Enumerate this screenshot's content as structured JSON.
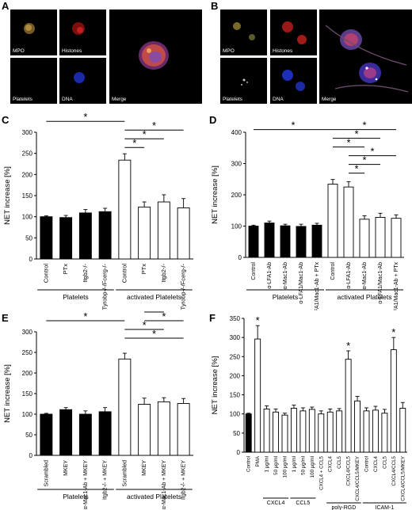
{
  "panels": {
    "A": {
      "label": "A",
      "captions": {
        "mpo": "MPO",
        "histones": "Histones",
        "platelets": "Platelets",
        "dna": "DNA",
        "merge": "Merge"
      }
    },
    "B": {
      "label": "B",
      "captions": {
        "mpo": "MPO",
        "histones": "Histones",
        "platelets": "Platelets",
        "dna": "DNA",
        "merge": "Merge"
      }
    }
  },
  "chart_data": [
    {
      "panel": "C",
      "type": "bar",
      "ylabel": "NET increase [%]",
      "ylim": [
        0,
        300
      ],
      "yticks": [
        0,
        50,
        100,
        150,
        200,
        250,
        300
      ],
      "categories": [
        "Control",
        "PTx",
        "Itgb2-/-",
        "Tyrobp-/-/Fcerg-/-",
        "Control",
        "PTx",
        "Itgb2-/-",
        "Tyrobp-/-/Fcerg-/-"
      ],
      "values": [
        100,
        98,
        109,
        112,
        234,
        123,
        135,
        121
      ],
      "errors": [
        2,
        5,
        8,
        8,
        15,
        12,
        17,
        22
      ],
      "fills": [
        "#000000",
        "#000000",
        "#000000",
        "#000000",
        "#ffffff",
        "#ffffff",
        "#ffffff",
        "#ffffff"
      ],
      "groups": [
        {
          "label": "Platelets",
          "from": 0,
          "to": 3
        },
        {
          "label": "activated Platelets",
          "from": 4,
          "to": 7
        }
      ],
      "brackets": [
        {
          "a": 0,
          "b": 4,
          "label": "*",
          "level": 3
        },
        {
          "a": 4,
          "b": 5,
          "label": "*",
          "level": 0
        },
        {
          "a": 4,
          "b": 6,
          "label": "*",
          "level": 1
        },
        {
          "a": 4,
          "b": 7,
          "label": "*",
          "level": 2
        }
      ]
    },
    {
      "panel": "D",
      "type": "bar",
      "ylabel": "NET increase [%]",
      "ylim": [
        0,
        400
      ],
      "yticks": [
        0,
        100,
        200,
        300,
        400
      ],
      "categories": [
        "Control",
        "α-LFA1-Ab",
        "α-Mac1-Ab",
        "α-LFA1/Mac1-Ab",
        "α-LFA1/Mac1-Ab + PTx",
        "Control",
        "α-LFA1-Ab",
        "α-Mac1-Ab",
        "α-LFA1/Mac1-Ab",
        "α-LFA1/Mac1-Ab + PTx"
      ],
      "values": [
        100,
        110,
        101,
        99,
        103,
        234,
        225,
        122,
        128,
        125
      ],
      "errors": [
        3,
        6,
        5,
        7,
        6,
        15,
        17,
        11,
        13,
        11
      ],
      "fills": [
        "#000000",
        "#000000",
        "#000000",
        "#000000",
        "#000000",
        "#ffffff",
        "#ffffff",
        "#ffffff",
        "#ffffff",
        "#ffffff"
      ],
      "groups": [
        {
          "label": "Platelets",
          "from": 0,
          "to": 4
        },
        {
          "label": "activated Platelets",
          "from": 5,
          "to": 9
        }
      ],
      "brackets": [
        {
          "a": 0,
          "b": 5,
          "label": "*",
          "level": 5
        },
        {
          "a": 6,
          "b": 7,
          "label": "*",
          "level": 0
        },
        {
          "a": 6,
          "b": 8,
          "label": "*",
          "level": 1
        },
        {
          "a": 6,
          "b": 9,
          "label": "*",
          "level": 2
        },
        {
          "a": 5,
          "b": 7,
          "label": "*",
          "level": 3
        },
        {
          "a": 5,
          "b": 8,
          "label": "*",
          "level": 4
        },
        {
          "a": 5,
          "b": 9,
          "label": "*",
          "level": 5
        }
      ]
    },
    {
      "panel": "E",
      "type": "bar",
      "ylabel": "NET increase [%]",
      "ylim": [
        0,
        300
      ],
      "yticks": [
        0,
        50,
        100,
        150,
        200,
        250,
        300
      ],
      "categories": [
        "Scrambled",
        "MKEY",
        "α-Mac1-Ab + MKEY",
        "Itgb2-/- + MKEY",
        "Scrambled",
        "MKEY",
        "α-Mac1-Ab + MKEY",
        "Itgb2-/- + MKEY"
      ],
      "values": [
        100,
        111,
        100,
        106,
        234,
        124,
        130,
        126
      ],
      "errors": [
        2,
        5,
        8,
        10,
        14,
        15,
        10,
        12
      ],
      "fills": [
        "#000000",
        "#000000",
        "#000000",
        "#000000",
        "#ffffff",
        "#ffffff",
        "#ffffff",
        "#ffffff"
      ],
      "groups": [
        {
          "label": "Platelets",
          "from": 0,
          "to": 3
        },
        {
          "label": "activated Platelets",
          "from": 4,
          "to": 7
        }
      ],
      "brackets": [
        {
          "a": 0,
          "b": 4,
          "label": "*",
          "level": 3
        },
        {
          "a": 5,
          "b": 6,
          "label": "*",
          "level": 4
        },
        {
          "a": 5,
          "b": 7,
          "label": "*",
          "level": 3
        },
        {
          "a": 4,
          "b": 6,
          "label": "*",
          "level": 2
        },
        {
          "a": 4,
          "b": 7,
          "label": "*",
          "level": 1
        }
      ]
    },
    {
      "panel": "F",
      "type": "bar",
      "ylabel": "NET increase [%]",
      "ylim": [
        0,
        350
      ],
      "yticks": [
        0,
        50,
        100,
        150,
        200,
        250,
        300,
        350
      ],
      "categories": [
        "Control",
        "PMA",
        "1 µg/ml",
        "50 µg/ml",
        "100 µg/ml",
        "1 µg/ml",
        "50 µg/ml",
        "100 µg/ml",
        "CXCL4 + CCL5",
        "CXCL4",
        "CCL5",
        "CXCL4/CCL5",
        "CXCL4/CCL5/MKEY",
        "Control",
        "CXCL4",
        "CCL5",
        "CXCL4/CCL5",
        "CXCL4/CCL5/MKEY"
      ],
      "values": [
        100,
        296,
        113,
        105,
        97,
        115,
        108,
        112,
        100,
        105,
        108,
        243,
        134,
        108,
        110,
        102,
        268,
        115
      ],
      "errors": [
        2,
        35,
        8,
        8,
        5,
        8,
        8,
        6,
        8,
        8,
        6,
        22,
        12,
        8,
        10,
        10,
        32,
        15
      ],
      "fills": [
        "#000000",
        "#ffffff",
        "#ffffff",
        "#ffffff",
        "#ffffff",
        "#ffffff",
        "#ffffff",
        "#ffffff",
        "#ffffff",
        "#ffffff",
        "#ffffff",
        "#ffffff",
        "#ffffff",
        "#ffffff",
        "#ffffff",
        "#ffffff",
        "#ffffff",
        "#ffffff"
      ],
      "stars": [
        {
          "bar": 1,
          "label": "*"
        },
        {
          "bar": 11,
          "label": "*"
        },
        {
          "bar": 16,
          "label": "*"
        }
      ],
      "underlines": [
        {
          "label": "CXCL4",
          "from": 2,
          "to": 4,
          "row": 0
        },
        {
          "label": "CCL5",
          "from": 5,
          "to": 7,
          "row": 0
        },
        {
          "label": "poly-RGD",
          "from": 9,
          "to": 12,
          "row": 1
        },
        {
          "label": "ICAM-1",
          "from": 13,
          "to": 17,
          "row": 1
        }
      ]
    }
  ]
}
